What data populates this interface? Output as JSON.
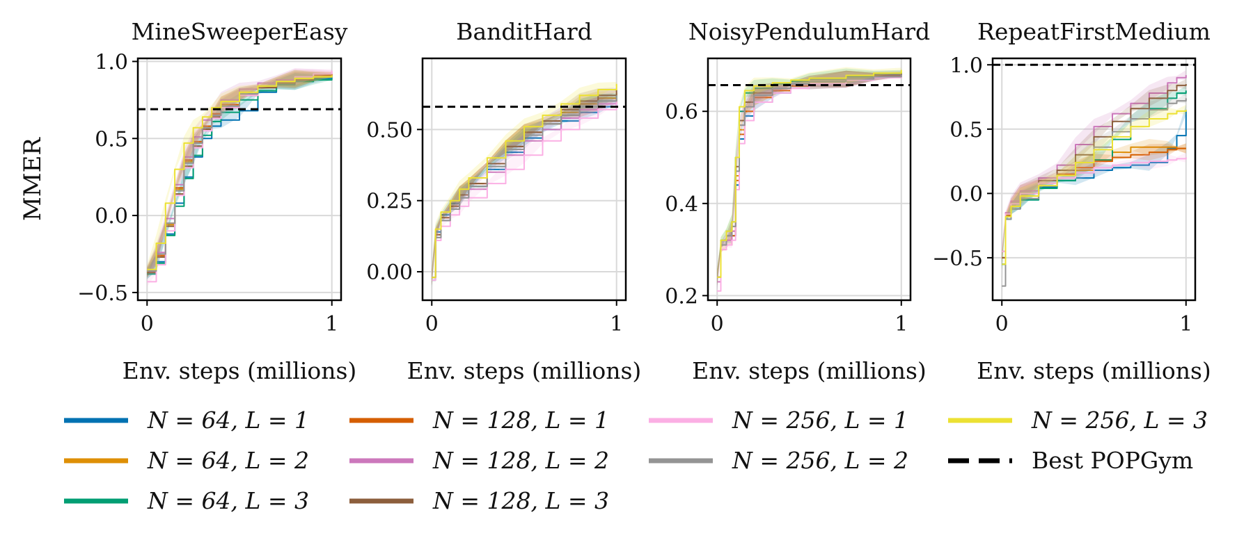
{
  "figure": {
    "ylabel": "MMER",
    "xlabel": "Env. steps (millions)"
  },
  "legend": {
    "placement": "bottom",
    "entries": [
      {
        "label": "N = 64, L = 1",
        "color": "#0072b2",
        "style": "solid"
      },
      {
        "label": "N = 64, L = 2",
        "color": "#de8f05",
        "style": "solid"
      },
      {
        "label": "N = 64, L = 3",
        "color": "#029e73",
        "style": "solid"
      },
      {
        "label": "N = 128, L = 1",
        "color": "#d55e00",
        "style": "solid"
      },
      {
        "label": "N = 128, L = 2",
        "color": "#cc78bc",
        "style": "solid"
      },
      {
        "label": "N = 128, L = 3",
        "color": "#8c5e3c",
        "style": "solid"
      },
      {
        "label": "N = 256, L = 1",
        "color": "#fbafe4",
        "style": "solid"
      },
      {
        "label": "N = 256, L = 2",
        "color": "#949494",
        "style": "solid"
      },
      {
        "label": "N = 256, L = 3",
        "color": "#ece133",
        "style": "solid"
      },
      {
        "label": "Best POPGym",
        "color": "#000000",
        "style": "dashed"
      }
    ]
  },
  "chart_data": [
    {
      "type": "line",
      "title": "MineSweeperEasy",
      "xlabel": "Env. steps (millions)",
      "ylabel": "MMER",
      "xlim": [
        -0.05,
        1.05
      ],
      "ylim": [
        -0.55,
        1.02
      ],
      "xticks": [
        0,
        1
      ],
      "xtick_labels": [
        "0",
        "1"
      ],
      "yticks": [
        -0.5,
        0.0,
        0.5,
        1.0
      ],
      "ytick_labels": [
        "−0.5",
        "0.0",
        "0.5",
        "1.0"
      ],
      "grid": true,
      "reference": {
        "name": "Best POPGym",
        "value": 0.69
      },
      "x": [
        0.0,
        0.05,
        0.1,
        0.15,
        0.2,
        0.25,
        0.3,
        0.35,
        0.4,
        0.5,
        0.6,
        0.7,
        0.8,
        0.9,
        1.0
      ],
      "series": [
        {
          "name": "N = 64, L = 1",
          "values": [
            -0.38,
            -0.3,
            -0.12,
            0.08,
            0.25,
            0.38,
            0.5,
            0.58,
            0.62,
            0.68,
            0.8,
            0.85,
            0.87,
            0.89,
            0.9
          ]
        },
        {
          "name": "N = 64, L = 2",
          "values": [
            -0.37,
            -0.27,
            -0.06,
            0.17,
            0.35,
            0.47,
            0.57,
            0.65,
            0.72,
            0.78,
            0.83,
            0.86,
            0.88,
            0.9,
            0.92
          ]
        },
        {
          "name": "N = 64, L = 3",
          "values": [
            -0.38,
            -0.31,
            -0.13,
            0.06,
            0.24,
            0.39,
            0.52,
            0.61,
            0.67,
            0.75,
            0.81,
            0.85,
            0.87,
            0.88,
            0.89
          ]
        },
        {
          "name": "N = 128, L = 1",
          "values": [
            -0.37,
            -0.26,
            -0.05,
            0.18,
            0.36,
            0.48,
            0.58,
            0.66,
            0.72,
            0.79,
            0.84,
            0.87,
            0.89,
            0.91,
            0.92
          ]
        },
        {
          "name": "N = 128, L = 2",
          "values": [
            -0.36,
            -0.24,
            -0.02,
            0.2,
            0.38,
            0.51,
            0.62,
            0.69,
            0.75,
            0.82,
            0.86,
            0.88,
            0.9,
            0.92,
            0.93
          ]
        },
        {
          "name": "N = 128, L = 3",
          "values": [
            -0.37,
            -0.27,
            -0.07,
            0.14,
            0.32,
            0.45,
            0.56,
            0.64,
            0.7,
            0.78,
            0.83,
            0.86,
            0.88,
            0.9,
            0.91
          ]
        },
        {
          "name": "N = 256, L = 1",
          "values": [
            -0.43,
            -0.32,
            -0.1,
            0.13,
            0.31,
            0.44,
            0.55,
            0.63,
            0.7,
            0.78,
            0.84,
            0.87,
            0.9,
            0.92,
            0.94
          ]
        },
        {
          "name": "N = 256, L = 2",
          "values": [
            -0.36,
            -0.25,
            -0.05,
            0.16,
            0.34,
            0.47,
            0.57,
            0.65,
            0.71,
            0.79,
            0.84,
            0.87,
            0.89,
            0.9,
            0.91
          ]
        },
        {
          "name": "N = 256, L = 3",
          "values": [
            -0.35,
            -0.18,
            0.08,
            0.3,
            0.47,
            0.57,
            0.64,
            0.7,
            0.74,
            0.8,
            0.84,
            0.87,
            0.89,
            0.9,
            0.91
          ]
        }
      ]
    },
    {
      "type": "line",
      "title": "BanditHard",
      "xlabel": "Env. steps (millions)",
      "ylabel": "",
      "xlim": [
        -0.05,
        1.05
      ],
      "ylim": [
        -0.1,
        0.75
      ],
      "xticks": [
        0,
        1
      ],
      "xtick_labels": [
        "0",
        "1"
      ],
      "yticks": [
        0.0,
        0.25,
        0.5
      ],
      "ytick_labels": [
        "0.00",
        "0.25",
        "0.50"
      ],
      "grid": true,
      "reference": {
        "name": "Best POPGym",
        "value": 0.58
      },
      "x": [
        0.0,
        0.02,
        0.05,
        0.1,
        0.15,
        0.2,
        0.3,
        0.4,
        0.5,
        0.6,
        0.7,
        0.8,
        0.9,
        1.0
      ],
      "series": [
        {
          "name": "N = 64, L = 1",
          "values": [
            -0.02,
            0.14,
            0.2,
            0.24,
            0.27,
            0.3,
            0.36,
            0.42,
            0.47,
            0.5,
            0.53,
            0.56,
            0.58,
            0.6
          ]
        },
        {
          "name": "N = 64, L = 2",
          "values": [
            -0.02,
            0.13,
            0.19,
            0.23,
            0.27,
            0.31,
            0.38,
            0.44,
            0.49,
            0.53,
            0.56,
            0.59,
            0.61,
            0.63
          ]
        },
        {
          "name": "N = 64, L = 3",
          "values": [
            -0.03,
            0.12,
            0.18,
            0.22,
            0.26,
            0.3,
            0.37,
            0.43,
            0.48,
            0.52,
            0.55,
            0.58,
            0.6,
            0.62
          ]
        },
        {
          "name": "N = 128, L = 1",
          "values": [
            -0.02,
            0.13,
            0.19,
            0.23,
            0.27,
            0.31,
            0.38,
            0.44,
            0.49,
            0.52,
            0.55,
            0.57,
            0.59,
            0.61
          ]
        },
        {
          "name": "N = 128, L = 2",
          "values": [
            -0.02,
            0.12,
            0.18,
            0.22,
            0.26,
            0.29,
            0.35,
            0.41,
            0.46,
            0.5,
            0.54,
            0.57,
            0.59,
            0.6
          ]
        },
        {
          "name": "N = 128, L = 3",
          "values": [
            -0.02,
            0.13,
            0.19,
            0.23,
            0.27,
            0.31,
            0.38,
            0.44,
            0.49,
            0.53,
            0.57,
            0.6,
            0.62,
            0.64
          ]
        },
        {
          "name": "N = 256, L = 1",
          "values": [
            -0.03,
            0.11,
            0.16,
            0.2,
            0.23,
            0.26,
            0.31,
            0.36,
            0.41,
            0.46,
            0.5,
            0.54,
            0.57,
            0.6
          ]
        },
        {
          "name": "N = 256, L = 2",
          "values": [
            -0.02,
            0.12,
            0.18,
            0.22,
            0.26,
            0.3,
            0.37,
            0.43,
            0.48,
            0.52,
            0.55,
            0.58,
            0.6,
            0.62
          ]
        },
        {
          "name": "N = 256, L = 3",
          "values": [
            -0.02,
            0.15,
            0.21,
            0.25,
            0.29,
            0.33,
            0.4,
            0.46,
            0.51,
            0.55,
            0.59,
            0.62,
            0.64,
            0.66
          ]
        }
      ]
    },
    {
      "type": "line",
      "title": "NoisyPendulumHard",
      "xlabel": "Env. steps (millions)",
      "ylabel": "",
      "xlim": [
        -0.05,
        1.05
      ],
      "ylim": [
        0.19,
        0.715
      ],
      "xticks": [
        0,
        1
      ],
      "xtick_labels": [
        "0",
        "1"
      ],
      "yticks": [
        0.2,
        0.4,
        0.6
      ],
      "ytick_labels": [
        "0.2",
        "0.4",
        "0.6"
      ],
      "grid": true,
      "reference": {
        "name": "Best POPGym",
        "value": 0.657
      },
      "x": [
        0.0,
        0.02,
        0.05,
        0.08,
        0.1,
        0.12,
        0.15,
        0.2,
        0.3,
        0.4,
        0.5,
        0.7,
        0.85,
        1.0
      ],
      "series": [
        {
          "name": "N = 64, L = 1",
          "values": [
            0.24,
            0.31,
            0.32,
            0.33,
            0.44,
            0.54,
            0.59,
            0.62,
            0.64,
            0.655,
            0.66,
            0.67,
            0.675,
            0.68
          ]
        },
        {
          "name": "N = 64, L = 2",
          "values": [
            0.24,
            0.31,
            0.32,
            0.34,
            0.46,
            0.56,
            0.6,
            0.63,
            0.645,
            0.66,
            0.665,
            0.67,
            0.675,
            0.68
          ]
        },
        {
          "name": "N = 64, L = 3",
          "values": [
            0.23,
            0.32,
            0.34,
            0.36,
            0.5,
            0.6,
            0.64,
            0.65,
            0.66,
            0.665,
            0.67,
            0.675,
            0.68,
            0.685
          ]
        },
        {
          "name": "N = 128, L = 1",
          "values": [
            0.24,
            0.3,
            0.31,
            0.33,
            0.45,
            0.55,
            0.6,
            0.63,
            0.645,
            0.655,
            0.66,
            0.67,
            0.675,
            0.68
          ]
        },
        {
          "name": "N = 128, L = 2",
          "values": [
            0.23,
            0.31,
            0.32,
            0.34,
            0.47,
            0.57,
            0.61,
            0.635,
            0.65,
            0.66,
            0.665,
            0.67,
            0.675,
            0.68
          ]
        },
        {
          "name": "N = 128, L = 3",
          "values": [
            0.24,
            0.31,
            0.33,
            0.35,
            0.48,
            0.58,
            0.62,
            0.64,
            0.65,
            0.66,
            0.665,
            0.67,
            0.678,
            0.683
          ]
        },
        {
          "name": "N = 256, L = 1",
          "values": [
            0.21,
            0.3,
            0.31,
            0.32,
            0.43,
            0.53,
            0.58,
            0.62,
            0.64,
            0.65,
            0.66,
            0.668,
            0.673,
            0.678
          ]
        },
        {
          "name": "N = 256, L = 2",
          "values": [
            0.24,
            0.31,
            0.33,
            0.35,
            0.47,
            0.57,
            0.61,
            0.635,
            0.65,
            0.66,
            0.665,
            0.67,
            0.675,
            0.68
          ]
        },
        {
          "name": "N = 256, L = 3",
          "values": [
            0.24,
            0.32,
            0.34,
            0.36,
            0.5,
            0.61,
            0.645,
            0.655,
            0.662,
            0.668,
            0.672,
            0.678,
            0.683,
            0.69
          ]
        }
      ]
    },
    {
      "type": "line",
      "title": "RepeatFirstMedium",
      "xlabel": "Env. steps (millions)",
      "ylabel": "",
      "xlim": [
        -0.05,
        1.05
      ],
      "ylim": [
        -0.83,
        1.05
      ],
      "xticks": [
        0,
        1
      ],
      "xtick_labels": [
        "0",
        "1"
      ],
      "yticks": [
        -0.5,
        0.0,
        0.5,
        1.0
      ],
      "ytick_labels": [
        "−0.5",
        "0.0",
        "0.5",
        "1.0"
      ],
      "grid": true,
      "reference": {
        "name": "Best POPGym",
        "value": 1.0
      },
      "x": [
        0.0,
        0.02,
        0.05,
        0.1,
        0.2,
        0.3,
        0.4,
        0.5,
        0.6,
        0.7,
        0.8,
        0.9,
        0.95,
        1.0
      ],
      "series": [
        {
          "name": "N = 64, L = 1",
          "values": [
            -0.55,
            -0.2,
            -0.12,
            -0.05,
            0.05,
            0.1,
            0.12,
            0.18,
            0.2,
            0.22,
            0.24,
            0.35,
            0.45,
            0.65
          ]
        },
        {
          "name": "N = 64, L = 2",
          "values": [
            -0.5,
            -0.18,
            -0.1,
            -0.02,
            0.08,
            0.12,
            0.18,
            0.26,
            0.32,
            0.36,
            0.36,
            0.36,
            0.35,
            0.35
          ]
        },
        {
          "name": "N = 64, L = 3",
          "values": [
            -0.55,
            -0.2,
            -0.12,
            -0.05,
            0.04,
            0.1,
            0.16,
            0.26,
            0.42,
            0.58,
            0.66,
            0.74,
            0.78,
            0.8
          ]
        },
        {
          "name": "N = 128, L = 1",
          "values": [
            -0.5,
            -0.17,
            -0.08,
            0.0,
            0.08,
            0.15,
            0.2,
            0.25,
            0.28,
            0.3,
            0.32,
            0.34,
            0.35,
            0.35
          ]
        },
        {
          "name": "N = 128, L = 2",
          "values": [
            -0.45,
            -0.15,
            -0.06,
            0.02,
            0.12,
            0.22,
            0.38,
            0.52,
            0.62,
            0.7,
            0.78,
            0.86,
            0.9,
            0.92
          ]
        },
        {
          "name": "N = 128, L = 3",
          "values": [
            -0.5,
            -0.18,
            -0.08,
            0.0,
            0.1,
            0.18,
            0.3,
            0.44,
            0.56,
            0.66,
            0.74,
            0.8,
            0.84,
            0.85
          ]
        },
        {
          "name": "N = 256, L = 1",
          "values": [
            -0.45,
            -0.16,
            -0.08,
            0.0,
            0.08,
            0.12,
            0.16,
            0.2,
            0.22,
            0.24,
            0.25,
            0.26,
            0.27,
            0.28
          ]
        },
        {
          "name": "N = 256, L = 2",
          "values": [
            -0.72,
            -0.2,
            -0.12,
            -0.04,
            0.06,
            0.14,
            0.24,
            0.36,
            0.48,
            0.58,
            0.65,
            0.7,
            0.72,
            0.74
          ]
        },
        {
          "name": "N = 256, L = 3",
          "values": [
            -0.55,
            -0.18,
            -0.1,
            -0.02,
            0.06,
            0.14,
            0.24,
            0.34,
            0.44,
            0.52,
            0.58,
            0.62,
            0.64,
            0.65
          ]
        }
      ]
    }
  ]
}
